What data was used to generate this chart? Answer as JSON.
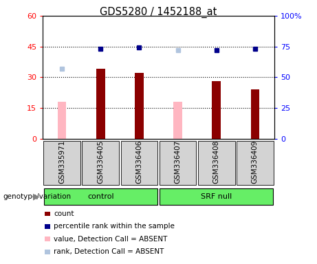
{
  "title": "GDS5280 / 1452188_at",
  "samples": [
    "GSM335971",
    "GSM336405",
    "GSM336406",
    "GSM336407",
    "GSM336408",
    "GSM336409"
  ],
  "count_values": [
    null,
    34,
    32,
    null,
    28,
    24
  ],
  "count_absent": [
    18,
    null,
    null,
    18,
    null,
    null
  ],
  "percentile_rank": [
    null,
    73,
    74,
    null,
    72,
    73
  ],
  "rank_absent": [
    57,
    null,
    null,
    72,
    null,
    null
  ],
  "ylim_left": [
    0,
    60
  ],
  "ylim_right": [
    0,
    100
  ],
  "yticks_left": [
    0,
    15,
    30,
    45,
    60
  ],
  "yticks_right": [
    0,
    25,
    50,
    75,
    100
  ],
  "ytick_labels_right": [
    "0",
    "25",
    "50",
    "75",
    "100%"
  ],
  "bar_color_present": "#8B0000",
  "bar_color_absent": "#FFB6C1",
  "dot_color_present": "#00008B",
  "dot_color_absent": "#B0C4DE",
  "bar_width": 0.22,
  "group_bg": "#cccccc",
  "sample_box_color": "#d3d3d3",
  "group_green": "#66ee66",
  "legend_items": [
    {
      "label": "count",
      "color": "#8B0000"
    },
    {
      "label": "percentile rank within the sample",
      "color": "#00008B"
    },
    {
      "label": "value, Detection Call = ABSENT",
      "color": "#FFB6C1"
    },
    {
      "label": "rank, Detection Call = ABSENT",
      "color": "#B0C4DE"
    }
  ],
  "control_range": [
    0,
    2
  ],
  "srf_range": [
    3,
    5
  ],
  "control_label": "control",
  "srf_label": "SRF null",
  "geno_label": "genotype/variation"
}
